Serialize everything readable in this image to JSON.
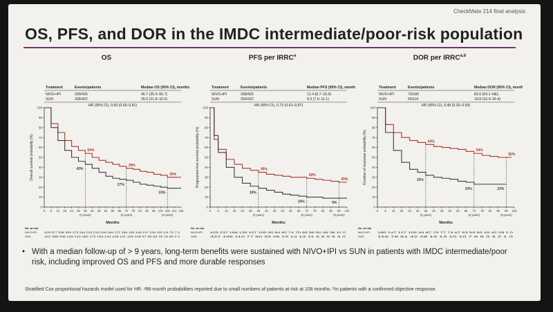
{
  "header": {
    "study_label": "CheckMate 214 final analysis"
  },
  "title": "OS, PFS, and DOR in the IMDC intermediate/poor-risk population",
  "colors": {
    "nivo_ipi": "#a4352b",
    "sun": "#3a3a3a",
    "accent_rule": "#7a2f6a"
  },
  "chart_data": [
    {
      "type": "line",
      "title": "OS",
      "title_sup": "",
      "ylabel": "Overall survival probability (%)",
      "xlabel": "Months",
      "xlim": [
        0,
        120
      ],
      "ylim": [
        0,
        100
      ],
      "xticks": [
        "0",
        "6",
        "12",
        "18",
        "24",
        "30",
        "36",
        "42",
        "48",
        "54",
        "60",
        "66",
        "72",
        "78",
        "84",
        "90",
        "96",
        "102",
        "108",
        "114",
        "120"
      ],
      "yticks": [
        "0",
        "10",
        "20",
        "30",
        "40",
        "50",
        "60",
        "70",
        "80",
        "90",
        "100"
      ],
      "table": {
        "headers": [
          "Treatment",
          "Events/patients",
          "Median OS (95% CI), months"
        ],
        "rows": [
          [
            "NIVO+IPI",
            "290/425",
            "46.7 (35.0–55.7)"
          ],
          [
            "SUN",
            "328/422",
            "26.0 (21.8–32.6)"
          ]
        ],
        "hr": "HR (95% CI), 0.69 (0.59–0.81)"
      },
      "series": [
        {
          "name": "NIVO+IPI",
          "x": [
            0,
            6,
            12,
            18,
            24,
            30,
            36,
            42,
            48,
            54,
            60,
            66,
            72,
            78,
            84,
            90,
            96,
            102,
            108,
            114,
            120
          ],
          "y": [
            100,
            84,
            75,
            67,
            61,
            57,
            54,
            50,
            47,
            45,
            43,
            41,
            39,
            38,
            36,
            35,
            33,
            32,
            30,
            30,
            30
          ]
        },
        {
          "name": "SUN",
          "x": [
            0,
            6,
            12,
            18,
            24,
            30,
            36,
            42,
            48,
            54,
            60,
            66,
            72,
            78,
            84,
            90,
            96,
            102,
            108,
            114,
            120
          ],
          "y": [
            100,
            80,
            67,
            57,
            50,
            46,
            43,
            39,
            35,
            31,
            29,
            28,
            27,
            25,
            23,
            22,
            21,
            20,
            19,
            19,
            19
          ]
        }
      ],
      "annotations": [
        {
          "text": "54%",
          "x": 36,
          "y": 54,
          "series": "NIVO+IPI"
        },
        {
          "text": "43%",
          "x": 36,
          "y": 43,
          "series": "SUN"
        },
        {
          "text": "39%",
          "x": 72,
          "y": 39,
          "series": "NIVO+IPI"
        },
        {
          "text": "27%",
          "x": 72,
          "y": 27,
          "series": "SUN"
        },
        {
          "text": "30%",
          "x": 108,
          "y": 30,
          "series": "NIVO+IPI"
        },
        {
          "text": "19%",
          "x": 108,
          "y": 19,
          "series": "SUN"
        }
      ],
      "landmarks": [
        {
          "x": 36,
          "label": "(3 years)"
        },
        {
          "x": 72,
          "label": "(6 years)"
        },
        {
          "x": 108,
          "label": "(9 years)"
        }
      ],
      "at_risk": {
        "label": "No. at risk",
        "rows": [
          {
            "name": "NIVO+IPI",
            "values": "425 377 336 309 273 244 223 210 200 184 172 165 153 146 137 126 115 111 70 7 0"
          },
          {
            "name": "SUN",
            "values": "422 358 296 245 210 182 172 154 140 128 121 109 105 97 90 83 78 76 45 2 0"
          }
        ]
      }
    },
    {
      "type": "line",
      "title": "PFS per IRRC",
      "title_sup": "a",
      "ylabel": "Progression-free survival probability (%)",
      "xlabel": "Months",
      "xlim": [
        0,
        102
      ],
      "ylim": [
        0,
        100
      ],
      "xticks": [
        "0",
        "6",
        "12",
        "18",
        "24",
        "30",
        "36",
        "42",
        "48",
        "54",
        "60",
        "66",
        "72",
        "78",
        "84",
        "90",
        "96",
        "102"
      ],
      "yticks": [
        "0",
        "10",
        "20",
        "30",
        "40",
        "50",
        "60",
        "70",
        "80",
        "90",
        "100"
      ],
      "table": {
        "headers": [
          "Treatment",
          "Events/patients",
          "Median PFS (95% CI), months"
        ],
        "rows": [
          [
            "NIVO+IPI",
            "258/425",
            "12.4 (8.7–16.6)"
          ],
          [
            "SUN",
            "259/422",
            "8.5 (7.0–11.1)"
          ]
        ],
        "hr": "HR (95% CI), 0.73 (0.61–0.87)"
      },
      "series": [
        {
          "name": "NIVO+IPI",
          "x": [
            0,
            3,
            6,
            12,
            18,
            24,
            30,
            36,
            42,
            48,
            54,
            60,
            66,
            72,
            78,
            84,
            90,
            96,
            102
          ],
          "y": [
            100,
            68,
            58,
            48,
            43,
            39,
            37,
            35,
            33,
            32,
            31,
            30,
            30,
            29,
            28,
            27,
            26,
            25,
            25
          ]
        },
        {
          "name": "SUN",
          "x": [
            0,
            3,
            6,
            12,
            18,
            24,
            30,
            36,
            42,
            48,
            54,
            60,
            66,
            72,
            78,
            84,
            90,
            96,
            102
          ],
          "y": [
            100,
            72,
            55,
            40,
            30,
            24,
            21,
            19,
            17,
            15,
            13,
            12,
            11,
            10,
            10,
            9,
            9,
            9,
            9
          ]
        }
      ],
      "annotations": [
        {
          "text": "35%",
          "x": 36,
          "y": 35,
          "series": "NIVO+IPI"
        },
        {
          "text": "19%",
          "x": 36,
          "y": 19,
          "series": "SUN"
        },
        {
          "text": "29%",
          "x": 72,
          "y": 29,
          "series": "NIVO+IPI"
        },
        {
          "text": "10%",
          "x": 72,
          "y": 10,
          "series": "SUN"
        },
        {
          "text": "25%",
          "x": 96,
          "y": 25,
          "series": "NIVO+IPI"
        },
        {
          "text": "9%",
          "x": 96,
          "y": 9,
          "series": "SUN"
        }
      ],
      "landmarks": [
        {
          "x": 36,
          "label": "(3 years)"
        },
        {
          "x": 72,
          "label": "(6 years)"
        },
        {
          "x": 96,
          "label": "(8 years)"
        }
      ],
      "at_risk": {
        "label": "No. at risk",
        "rows": [
          {
            "name": "NIVO+IPI",
            "values": "425 237 168 135 107 100 90 84 82 74 70 65 56 50 46 38 11 0"
          },
          {
            "name": "SUN",
            "values": "422 196 110 77 60 33 26 19 14 13 11 6 6 5 5 3 0"
          }
        ]
      }
    },
    {
      "type": "line",
      "title": "DOR per IRRC",
      "title_sup": "a,b",
      "ylabel": "Duration of response probability (%)",
      "xlabel": "Months",
      "xlim": [
        0,
        102
      ],
      "ylim": [
        0,
        100
      ],
      "xticks": [
        "0",
        "6",
        "12",
        "18",
        "24",
        "30",
        "36",
        "42",
        "48",
        "54",
        "60",
        "66",
        "72",
        "78",
        "84",
        "90",
        "96",
        "102"
      ],
      "yticks": [
        "0",
        "10",
        "20",
        "30",
        "40",
        "50",
        "60",
        "70",
        "80",
        "90",
        "100"
      ],
      "table": {
        "headers": [
          "Treatment",
          "Events/patients",
          "Median DOR (95% CI), months"
        ],
        "rows": [
          [
            "NIVO+IPI",
            "73/180",
            "83.6 (54.1–NE)"
          ],
          [
            "SUN",
            "59/116",
            "19.8 (16.4–26.4)"
          ]
        ],
        "hr": "HR (95% CI), 0.48 (0.33–0.69)"
      },
      "series": [
        {
          "name": "NIVO+IPI",
          "x": [
            0,
            6,
            12,
            18,
            24,
            30,
            36,
            42,
            48,
            54,
            60,
            66,
            72,
            78,
            84,
            90,
            96,
            100
          ],
          "y": [
            100,
            83,
            75,
            70,
            67,
            65,
            63,
            61,
            60,
            59,
            58,
            56,
            54,
            52,
            51,
            50,
            50,
            50
          ]
        },
        {
          "name": "SUN",
          "x": [
            0,
            6,
            12,
            18,
            24,
            30,
            36,
            42,
            48,
            54,
            60,
            66,
            72,
            78,
            84,
            90,
            96
          ],
          "y": [
            100,
            75,
            57,
            45,
            38,
            35,
            32,
            30,
            29,
            28,
            26,
            25,
            23,
            23,
            23,
            23,
            23
          ]
        }
      ],
      "annotations": [
        {
          "text": "63%",
          "x": 36,
          "y": 63,
          "series": "NIVO+IPI"
        },
        {
          "text": "32%",
          "x": 36,
          "y": 32,
          "series": "SUN"
        },
        {
          "text": "54%",
          "x": 72,
          "y": 54,
          "series": "NIVO+IPI"
        },
        {
          "text": "23%",
          "x": 72,
          "y": 23,
          "series": "SUN"
        },
        {
          "text": "50%",
          "x": 96,
          "y": 50,
          "series": "NIVO+IPI"
        },
        {
          "text": "23%",
          "x": 96,
          "y": 23,
          "series": "SUN"
        }
      ],
      "landmarks": [
        {
          "x": 36,
          "label": "(3 years)"
        },
        {
          "x": 72,
          "label": "(6 years)"
        },
        {
          "x": 96,
          "label": "(8 years)"
        }
      ],
      "at_risk": {
        "label": "No. at risk",
        "rows": [
          {
            "name": "NIVO+IPI",
            "values": "180 147 127 109 94 87 79 77 74 67 63 59 50 45 42 28 2 0"
          },
          {
            "name": "SUN",
            "values": "116 78 61 42 28 19 13 10 10 7 6 5 3 3 2 1 0"
          }
        ]
      }
    }
  ],
  "bullet": "With a median follow-up of > 9 years, long-term benefits were sustained with NIVO+IPI vs SUN in patients with IMDC intermediate/poor risk, including improved OS and PFS and more durable responses",
  "footnote": "Stratified Cox proportional hazards model used for HR. ᵃ96-month probabilities reported due to small numbers of patients at risk at 108 months. ᵇIn patients with a confirmed objective response."
}
